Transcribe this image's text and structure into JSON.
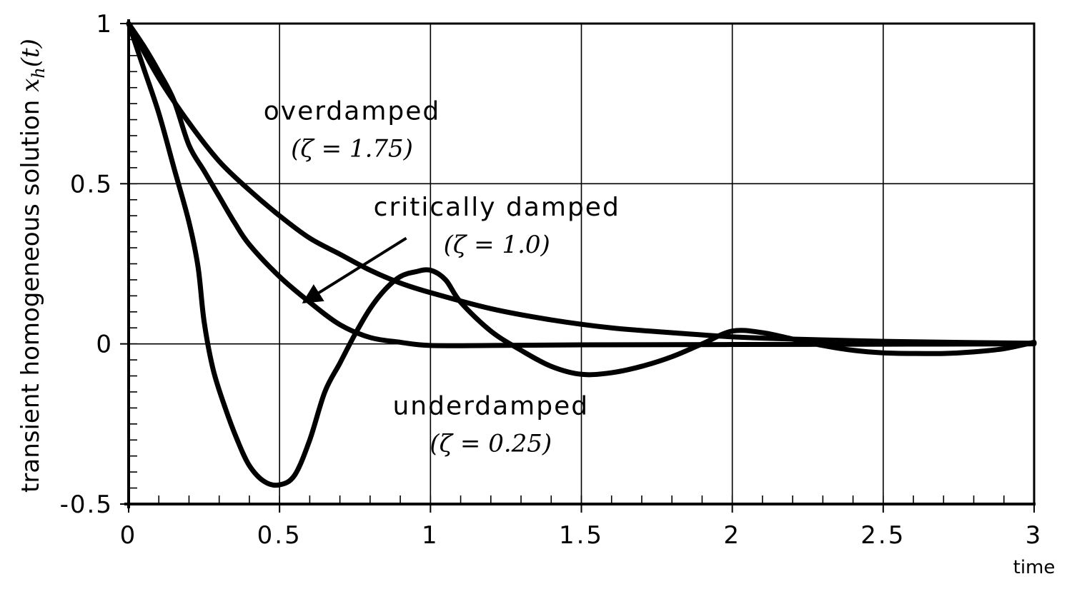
{
  "chart_data": {
    "type": "line",
    "xlabel": "time",
    "ylabel": "transient homogeneous solution x_h(t)",
    "xlim": [
      0,
      3
    ],
    "ylim": [
      -0.5,
      1
    ],
    "grid": true,
    "x_ticks": [
      {
        "value": 0,
        "label": "0"
      },
      {
        "value": 0.5,
        "label": "0.5"
      },
      {
        "value": 1,
        "label": "1"
      },
      {
        "value": 1.5,
        "label": "1.5"
      },
      {
        "value": 2,
        "label": "2"
      },
      {
        "value": 2.5,
        "label": "2.5"
      },
      {
        "value": 3,
        "label": "3"
      }
    ],
    "y_ticks": [
      {
        "value": 1,
        "label": "1"
      },
      {
        "value": 0.5,
        "label": "0.5"
      },
      {
        "value": 0,
        "label": "0"
      },
      {
        "value": -0.5,
        "label": "-0.5"
      }
    ],
    "series": [
      {
        "name": "overdamped",
        "zeta": "(ζ = 1.75)",
        "x": [
          0,
          0.1,
          0.2,
          0.3,
          0.4,
          0.5,
          0.6,
          0.7,
          0.8,
          0.9,
          1.0,
          1.2,
          1.4,
          1.6,
          1.8,
          2.0,
          2.2,
          2.5,
          2.8,
          3.0
        ],
        "y": [
          1.0,
          0.83,
          0.69,
          0.57,
          0.48,
          0.4,
          0.33,
          0.28,
          0.23,
          0.19,
          0.16,
          0.11,
          0.075,
          0.05,
          0.035,
          0.022,
          0.015,
          0.008,
          0.004,
          0.002
        ]
      },
      {
        "name": "critically damped",
        "zeta": "(ζ = 1.0)",
        "x": [
          0,
          0.05,
          0.1,
          0.15,
          0.2,
          0.25,
          0.3,
          0.35,
          0.4,
          0.5,
          0.6,
          0.7,
          0.8,
          0.9,
          1.0,
          1.2,
          1.5,
          2.0,
          2.5,
          3.0
        ],
        "y": [
          1.0,
          0.93,
          0.85,
          0.76,
          0.62,
          0.54,
          0.46,
          0.38,
          0.31,
          0.21,
          0.13,
          0.06,
          0.02,
          0.005,
          -0.005,
          -0.005,
          -0.003,
          -0.002,
          -0.001,
          0.0
        ]
      },
      {
        "name": "underdamped",
        "zeta": "(ζ = 0.25)",
        "x": [
          0,
          0.05,
          0.1,
          0.15,
          0.2,
          0.23,
          0.25,
          0.28,
          0.32,
          0.36,
          0.4,
          0.45,
          0.5,
          0.55,
          0.6,
          0.65,
          0.7,
          0.75,
          0.8,
          0.85,
          0.9,
          0.95,
          1.0,
          1.05,
          1.1,
          1.2,
          1.3,
          1.4,
          1.5,
          1.6,
          1.7,
          1.8,
          1.9,
          2.0,
          2.1,
          2.2,
          2.3,
          2.4,
          2.5,
          2.6,
          2.7,
          2.8,
          2.9,
          3.0
        ],
        "y": [
          1.0,
          0.86,
          0.72,
          0.55,
          0.38,
          0.24,
          0.07,
          -0.08,
          -0.2,
          -0.3,
          -0.38,
          -0.43,
          -0.44,
          -0.41,
          -0.3,
          -0.15,
          -0.06,
          0.03,
          0.11,
          0.17,
          0.21,
          0.225,
          0.23,
          0.2,
          0.13,
          0.04,
          -0.02,
          -0.07,
          -0.095,
          -0.09,
          -0.07,
          -0.04,
          0.0,
          0.04,
          0.035,
          0.015,
          -0.005,
          -0.02,
          -0.028,
          -0.03,
          -0.03,
          -0.025,
          -0.015,
          0.005
        ]
      }
    ],
    "annotations": [
      {
        "series": "overdamped",
        "name_label": "overdamped",
        "zeta_label": "(ζ = 1.75)",
        "at": [
          0.74,
          0.7
        ]
      },
      {
        "series": "critically damped",
        "name_label": "critically damped",
        "zeta_label": "(ζ = 1.0)",
        "at": [
          1.22,
          0.4
        ],
        "arrow_from": [
          0.92,
          0.33
        ],
        "arrow_to": [
          0.58,
          0.13
        ]
      },
      {
        "series": "underdamped",
        "name_label": "underdamped",
        "zeta_label": "(ζ = 0.25)",
        "at": [
          1.2,
          -0.22
        ]
      }
    ]
  }
}
